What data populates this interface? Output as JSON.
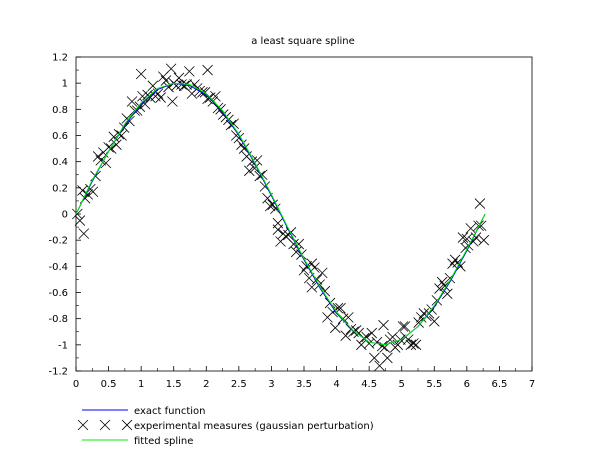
{
  "chart_data": {
    "type": "scatter",
    "title": "a least square spline",
    "xlabel": "",
    "ylabel": "",
    "xlim": [
      0,
      7
    ],
    "ylim": [
      -1.2,
      1.2
    ],
    "xticks": [
      "0",
      "0.5",
      "1",
      "1.5",
      "2",
      "2.5",
      "3",
      "3.5",
      "4",
      "4.5",
      "5",
      "5.5",
      "6",
      "6.5",
      "7"
    ],
    "yticks": [
      "-1.2",
      "-1",
      "-0.8",
      "-0.6",
      "-0.4",
      "-0.2",
      "0",
      "0.2",
      "0.4",
      "0.6",
      "0.8",
      "1",
      "1.2"
    ],
    "grid": false,
    "legend_position": "bottom-left",
    "series": [
      {
        "name": "exact function",
        "kind": "line",
        "color": "#0000ff",
        "x": [
          0,
          0.25,
          0.5,
          0.75,
          1.0,
          1.25,
          1.5,
          1.75,
          2.0,
          2.25,
          2.5,
          2.75,
          3.0,
          3.25,
          3.5,
          3.75,
          4.0,
          4.25,
          4.5,
          4.75,
          5.0,
          5.25,
          5.5,
          5.75,
          6.0,
          6.28
        ],
        "y": [
          0,
          0.25,
          0.48,
          0.68,
          0.84,
          0.95,
          1.0,
          0.98,
          0.91,
          0.78,
          0.6,
          0.38,
          0.14,
          -0.11,
          -0.35,
          -0.57,
          -0.76,
          -0.89,
          -0.98,
          -1.0,
          -0.96,
          -0.86,
          -0.71,
          -0.51,
          -0.28,
          0.0
        ]
      },
      {
        "name": "experimental measures (gaussian perturbation)",
        "kind": "scatter",
        "marker": "x",
        "color": "#000000",
        "x": [
          0.02,
          0.06,
          0.1,
          0.14,
          0.18,
          0.22,
          0.26,
          0.3,
          0.34,
          0.38,
          0.42,
          0.46,
          0.5,
          0.54,
          0.58,
          0.62,
          0.66,
          0.7,
          0.74,
          0.78,
          0.82,
          0.86,
          0.9,
          0.94,
          0.98,
          1.02,
          1.06,
          1.1,
          1.14,
          1.18,
          1.22,
          1.26,
          1.3,
          1.34,
          1.38,
          1.42,
          1.46,
          1.5,
          1.54,
          1.58,
          1.62,
          1.66,
          1.7,
          1.74,
          1.78,
          1.82,
          1.86,
          1.9,
          1.94,
          1.98,
          2.02,
          2.06,
          2.1,
          2.14,
          2.18,
          2.22,
          2.26,
          2.3,
          2.34,
          2.38,
          2.42,
          2.46,
          2.5,
          2.54,
          2.58,
          2.62,
          2.66,
          2.7,
          2.74,
          2.78,
          2.82,
          2.86,
          2.9,
          2.94,
          2.98,
          3.02,
          3.06,
          3.1,
          3.14,
          3.18,
          3.22,
          3.26,
          3.3,
          3.34,
          3.38,
          3.42,
          3.46,
          3.5,
          3.54,
          3.58,
          3.62,
          3.66,
          3.7,
          3.74,
          3.78,
          3.82,
          3.86,
          3.9,
          3.94,
          3.98,
          4.02,
          4.06,
          4.1,
          4.14,
          4.18,
          4.22,
          4.26,
          4.3,
          4.34,
          4.38,
          4.42,
          4.46,
          4.5,
          4.54,
          4.58,
          4.62,
          4.66,
          4.7,
          4.74,
          4.78,
          4.82,
          4.86,
          4.9,
          4.94,
          4.98,
          5.02,
          5.06,
          5.1,
          5.14,
          5.18,
          5.22,
          5.26,
          5.3,
          5.34,
          5.38,
          5.42,
          5.46,
          5.5,
          5.54,
          5.58,
          5.62,
          5.66,
          5.7,
          5.74,
          5.78,
          5.82,
          5.86,
          5.9,
          5.94,
          5.98,
          6.02,
          6.06,
          6.1,
          6.14,
          6.18,
          6.22,
          6.26,
          0.12,
          1.0,
          1.48,
          2.02,
          3.1,
          3.62,
          4.72,
          5.05,
          6.0,
          6.2
        ],
        "y": [
          0.0,
          -0.05,
          0.18,
          0.12,
          0.15,
          0.19,
          0.17,
          0.29,
          0.44,
          0.41,
          0.47,
          0.39,
          0.51,
          0.5,
          0.59,
          0.53,
          0.61,
          0.6,
          0.66,
          0.73,
          0.71,
          0.86,
          0.79,
          0.79,
          0.82,
          0.9,
          0.84,
          0.91,
          0.89,
          0.98,
          0.9,
          0.92,
          0.89,
          1.05,
          1.02,
          0.97,
          1.11,
          1.0,
          0.98,
          1.04,
          0.99,
          0.98,
          0.99,
          1.09,
          0.92,
          0.99,
          0.96,
          0.94,
          0.93,
          0.93,
          0.88,
          0.89,
          0.86,
          0.9,
          0.81,
          0.8,
          0.76,
          0.74,
          0.72,
          0.68,
          0.69,
          0.6,
          0.58,
          0.53,
          0.5,
          0.44,
          0.33,
          0.4,
          0.35,
          0.41,
          0.29,
          0.3,
          0.21,
          0.12,
          0.06,
          0.07,
          0.04,
          -0.12,
          -0.21,
          -0.15,
          -0.17,
          -0.16,
          -0.14,
          -0.23,
          -0.29,
          -0.23,
          -0.31,
          -0.43,
          -0.4,
          -0.49,
          -0.56,
          -0.41,
          -0.5,
          -0.54,
          -0.45,
          -0.59,
          -0.79,
          -0.68,
          -0.75,
          -0.87,
          -0.72,
          -0.72,
          -0.8,
          -0.93,
          -0.79,
          -0.88,
          -0.9,
          -0.89,
          -0.91,
          -1.0,
          -0.95,
          -0.94,
          -0.99,
          -0.91,
          -1.1,
          -0.98,
          -1.16,
          -1.01,
          -1.02,
          -1.1,
          -0.96,
          -0.94,
          -1.02,
          -1.0,
          -0.96,
          -0.86,
          -0.94,
          -0.96,
          -1.0,
          -0.99,
          -1.0,
          -0.83,
          -0.79,
          -0.76,
          -0.78,
          -0.76,
          -0.73,
          -0.82,
          -0.66,
          -0.57,
          -0.52,
          -0.55,
          -0.61,
          -0.49,
          -0.38,
          -0.35,
          -0.37,
          -0.4,
          -0.18,
          -0.26,
          -0.24,
          -0.11,
          -0.21,
          -0.18,
          -0.09,
          -0.09,
          -0.2,
          -0.15,
          1.07,
          0.86,
          1.1,
          -0.07,
          -0.38,
          -0.85,
          -0.86,
          -0.19,
          0.08
        ]
      },
      {
        "name": "fitted spline",
        "kind": "line",
        "color": "#00ee00",
        "x": [
          0,
          0.25,
          0.5,
          0.75,
          1.0,
          1.25,
          1.5,
          1.75,
          2.0,
          2.25,
          2.5,
          2.75,
          3.0,
          3.25,
          3.5,
          3.75,
          4.0,
          4.25,
          4.5,
          4.75,
          5.0,
          5.25,
          5.5,
          5.75,
          6.0,
          6.28
        ],
        "y": [
          0.0,
          0.26,
          0.48,
          0.69,
          0.85,
          0.96,
          1.0,
          0.99,
          0.92,
          0.79,
          0.61,
          0.39,
          0.15,
          -0.1,
          -0.34,
          -0.56,
          -0.75,
          -0.89,
          -0.98,
          -1.0,
          -0.96,
          -0.86,
          -0.7,
          -0.5,
          -0.27,
          0.0
        ]
      }
    ]
  }
}
